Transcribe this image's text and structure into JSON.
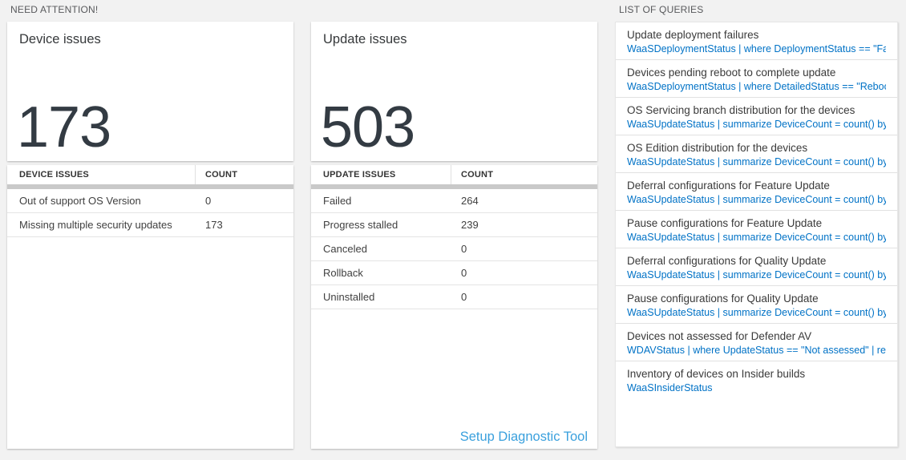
{
  "sections": {
    "need_attention": "NEED ATTENTION!",
    "list_of_queries": "LIST OF QUERIES"
  },
  "device_card": {
    "title": "Device issues",
    "count": "173",
    "table": {
      "headers": [
        "DEVICE ISSUES",
        "COUNT"
      ],
      "rows": [
        {
          "label": "Out of support OS Version",
          "value": "0"
        },
        {
          "label": "Missing multiple security updates",
          "value": "173"
        }
      ]
    }
  },
  "update_card": {
    "title": "Update issues",
    "count": "503",
    "table": {
      "headers": [
        "UPDATE ISSUES",
        "COUNT"
      ],
      "rows": [
        {
          "label": "Failed",
          "value": "264"
        },
        {
          "label": "Progress stalled",
          "value": "239"
        },
        {
          "label": "Canceled",
          "value": "0"
        },
        {
          "label": "Rollback",
          "value": "0"
        },
        {
          "label": "Uninstalled",
          "value": "0"
        }
      ]
    },
    "setup_link": "Setup Diagnostic Tool"
  },
  "queries": {
    "items": [
      {
        "title": "Update deployment failures",
        "query": "WaaSDeploymentStatus | where DeploymentStatus == \"Failed\" |..."
      },
      {
        "title": "Devices pending reboot to complete update",
        "query": "WaaSDeploymentStatus | where DetailedStatus == \"Reboot pend..."
      },
      {
        "title": "OS Servicing branch distribution for the devices",
        "query": "WaaSUpdateStatus | summarize DeviceCount = count() by OSSer..."
      },
      {
        "title": "OS Edition distribution for the devices",
        "query": "WaaSUpdateStatus | summarize DeviceCount = count() by OSEdit..."
      },
      {
        "title": "Deferral configurations for Feature Update",
        "query": "WaaSUpdateStatus | summarize DeviceCount = count() by Featur..."
      },
      {
        "title": "Pause configurations for Feature Update",
        "query": "WaaSUpdateStatus | summarize DeviceCount = count() by Featur..."
      },
      {
        "title": "Deferral configurations for Quality Update",
        "query": "WaaSUpdateStatus | summarize DeviceCount = count() by Qualit..."
      },
      {
        "title": "Pause configurations for Quality Update",
        "query": "WaaSUpdateStatus | summarize DeviceCount = count() by Qualit..."
      },
      {
        "title": "Devices not assessed for Defender AV",
        "query": "WDAVStatus | where UpdateStatus == \"Not assessed\" | render ta..."
      },
      {
        "title": "Inventory of devices on Insider builds",
        "query": "WaaSInsiderStatus"
      }
    ]
  },
  "colors": {
    "page_bg": "#f2f2f2",
    "query_link_blue": "#0072c6",
    "setup_link_blue": "#3aa0dd",
    "big_number_text": "#333b43",
    "grid_separator_bar": "#c9c9c9"
  }
}
